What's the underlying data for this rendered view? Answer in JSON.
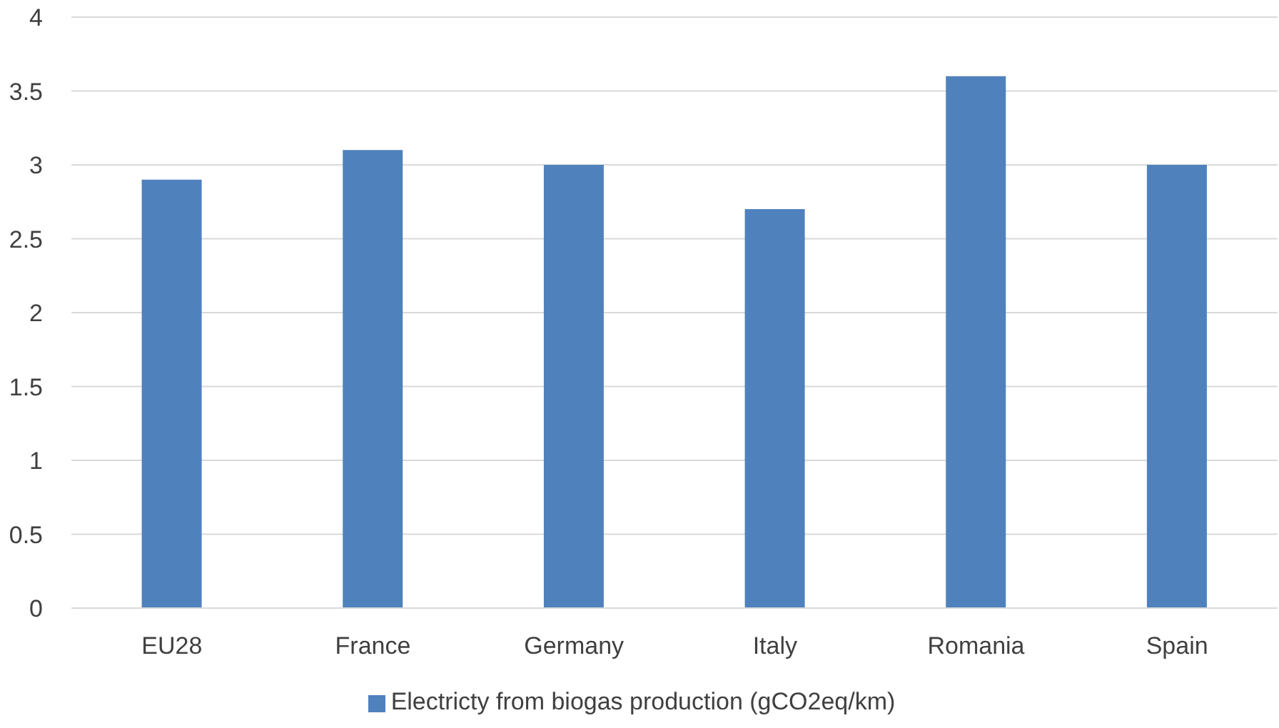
{
  "chart_data": {
    "type": "bar",
    "categories": [
      "EU28",
      "France",
      "Germany",
      "Italy",
      "Romania",
      "Spain"
    ],
    "series": [
      {
        "name": "Electricty from biogas production (gCO2eq/km)",
        "color": "#4f81bd",
        "values": [
          2.9,
          3.1,
          3.0,
          2.7,
          3.6,
          3.0
        ]
      }
    ],
    "ylim": [
      0,
      4
    ],
    "yticks": [
      0,
      0.5,
      1,
      1.5,
      2,
      2.5,
      3,
      3.5,
      4
    ],
    "grid": "y",
    "legend": "bottom"
  }
}
